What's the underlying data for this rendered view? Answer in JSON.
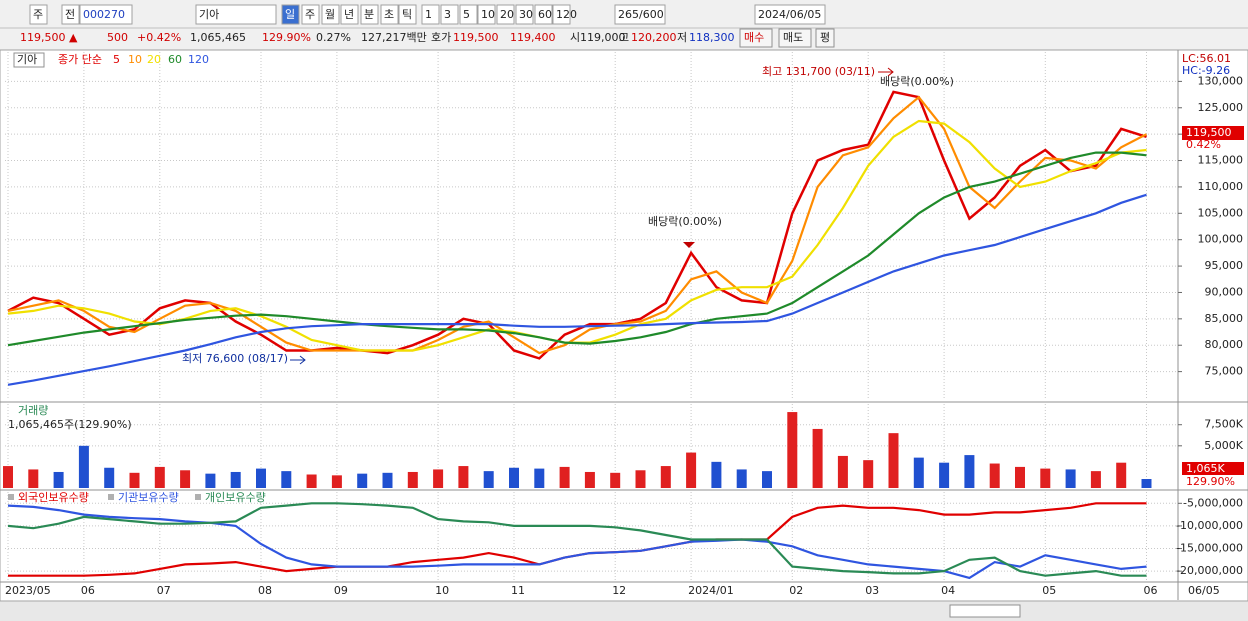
{
  "toolbar": {
    "row1": [
      "주",
      "전",
      "000270",
      "기아",
      "일",
      "주",
      "월",
      "년",
      "분",
      "초",
      "틱",
      "1",
      "3",
      "5",
      "10",
      "20",
      "30",
      "60",
      "120",
      "265/600",
      "2024/06/05"
    ],
    "row2": [
      "119,500 ▲",
      "500",
      "+0.42%",
      "1,065,465",
      "129.90%",
      "0.27%",
      "127,217백만",
      "호가",
      "119,500",
      "119,400",
      "시",
      "119,000",
      "고",
      "120,200",
      "저",
      "118,300",
      "매수",
      "매도",
      "평"
    ]
  },
  "chart_data": [
    {
      "type": "line",
      "name": "기아",
      "legend_title": "종가 단순",
      "annotations": [
        "최고 131,700 (03/11)",
        "최저 76,600 (08/17)",
        "배당락(0.00%)",
        "배당락(0.00%)"
      ],
      "lc": "LC:56.01",
      "hc": "HC:-9.26",
      "last_label": "119,500",
      "change_label": "0.42%",
      "ylim": [
        70000,
        135000
      ],
      "yticks": [
        {
          "value": 75000,
          "label": "75,000"
        },
        {
          "value": 80000,
          "label": "80,000"
        },
        {
          "value": 85000,
          "label": "85,000"
        },
        {
          "value": 90000,
          "label": "90,000"
        },
        {
          "value": 95000,
          "label": "95,000"
        },
        {
          "value": 100000,
          "label": "100,000"
        },
        {
          "value": 105000,
          "label": "105,000"
        },
        {
          "value": 110000,
          "label": "110,000"
        },
        {
          "value": 115000,
          "label": "115,000"
        },
        {
          "value": 120000,
          "label": "120,000"
        },
        {
          "value": 125000,
          "label": "125,000"
        },
        {
          "value": 130000,
          "label": "130,000"
        }
      ],
      "grid": true,
      "series": [
        {
          "name": "5",
          "color": "#e00000",
          "values": [
            86500,
            89000,
            88000,
            85000,
            82000,
            83000,
            87000,
            88500,
            88000,
            84500,
            82000,
            79000,
            79000,
            79500,
            79000,
            78500,
            80000,
            82000,
            85000,
            84000,
            79000,
            77500,
            82000,
            84000,
            84000,
            85000,
            88000,
            97500,
            91000,
            88500,
            88000,
            105000,
            115000,
            117000,
            118000,
            128000,
            127000,
            115000,
            104000,
            108000,
            114000,
            117000,
            113000,
            114000,
            121000,
            119500
          ]
        },
        {
          "name": "10",
          "color": "#ff8c00",
          "values": [
            86500,
            87500,
            88500,
            86500,
            83500,
            82500,
            85000,
            87500,
            88000,
            86500,
            83500,
            80500,
            79000,
            79000,
            79000,
            79000,
            79000,
            81000,
            83500,
            84500,
            81500,
            78500,
            80000,
            83000,
            84000,
            84500,
            86500,
            92500,
            94000,
            90000,
            88000,
            96000,
            110000,
            116000,
            117500,
            123000,
            127000,
            121000,
            110000,
            106000,
            111000,
            115500,
            115000,
            113500,
            117500,
            120000
          ]
        },
        {
          "name": "20",
          "color": "#f0e000",
          "values": [
            86000,
            86500,
            87500,
            87000,
            86000,
            84500,
            84000,
            85000,
            86500,
            87000,
            85500,
            83500,
            81000,
            80000,
            79000,
            79000,
            79000,
            80000,
            81500,
            83000,
            82500,
            81500,
            80500,
            80500,
            82000,
            84000,
            85000,
            88500,
            90500,
            91000,
            91000,
            93000,
            99000,
            106000,
            114000,
            119500,
            122500,
            122000,
            118500,
            113500,
            110000,
            111000,
            113000,
            114500,
            116500,
            117000
          ]
        },
        {
          "name": "60",
          "color": "#1f8a2a",
          "values": [
            80000,
            80800,
            81600,
            82400,
            83000,
            83600,
            84200,
            84800,
            85200,
            85600,
            85800,
            85500,
            85000,
            84500,
            84000,
            83600,
            83300,
            83000,
            83000,
            82800,
            82300,
            81500,
            80500,
            80300,
            80800,
            81500,
            82500,
            84000,
            85000,
            85500,
            86000,
            88000,
            91000,
            94000,
            97000,
            101000,
            105000,
            108000,
            110000,
            111000,
            112500,
            114000,
            115500,
            116500,
            116500,
            116000
          ]
        },
        {
          "name": "120",
          "color": "#2f55e0",
          "values": [
            72500,
            73300,
            74200,
            75100,
            76000,
            77000,
            78000,
            79000,
            80200,
            81500,
            82500,
            83200,
            83600,
            83800,
            84000,
            84000,
            84000,
            84000,
            84000,
            84000,
            83700,
            83500,
            83500,
            83600,
            83700,
            83800,
            84000,
            84200,
            84300,
            84400,
            84600,
            86000,
            88000,
            90000,
            92000,
            94000,
            95500,
            97000,
            98000,
            99000,
            100500,
            102000,
            103500,
            105000,
            107000,
            108500
          ]
        }
      ]
    },
    {
      "type": "bar",
      "title": "거래량",
      "subtitle": "1,065,465주(129.90%)",
      "last_label": "1,065K",
      "ratio_label": "129.90%",
      "up_color": "#e02020",
      "down_color": "#2050d0",
      "ylim": [
        0,
        9600000
      ],
      "yticks": [
        {
          "value": 5000000,
          "label": "5,000K"
        },
        {
          "value": 7500000,
          "label": "7,500K"
        }
      ],
      "values": [
        2600000,
        2200000,
        1900000,
        5000000,
        2400000,
        1800000,
        2500000,
        2100000,
        1700000,
        1900000,
        2300000,
        2000000,
        1600000,
        1500000,
        1700000,
        1800000,
        1900000,
        2200000,
        2600000,
        2000000,
        2400000,
        2300000,
        2500000,
        1900000,
        1800000,
        2100000,
        2600000,
        4200000,
        3100000,
        2200000,
        2000000,
        9000000,
        7000000,
        3800000,
        3300000,
        6500000,
        3600000,
        3000000,
        3900000,
        2900000,
        2500000,
        2300000,
        2200000,
        2000000,
        3000000,
        1065465
      ]
    },
    {
      "type": "line",
      "date_label": "06/05",
      "categories": [
        "2023/05",
        null,
        null,
        "06",
        null,
        null,
        "07",
        null,
        null,
        null,
        "08",
        null,
        null,
        "09",
        null,
        null,
        null,
        "10",
        null,
        null,
        "11",
        null,
        null,
        null,
        "12",
        null,
        null,
        "2024/01",
        null,
        null,
        null,
        "02",
        null,
        null,
        "03",
        null,
        null,
        "04",
        null,
        null,
        null,
        "05",
        null,
        null,
        null,
        "06"
      ],
      "ylim": [
        -22400000,
        -2500000
      ],
      "yticks": [
        {
          "value": -5000000,
          "label": "-5,000,000"
        },
        {
          "value": -10000000,
          "label": "-10,000,000"
        },
        {
          "value": -15000000,
          "label": "-15,000,000"
        },
        {
          "value": -20000000,
          "label": "-20,000,000"
        }
      ],
      "series": [
        {
          "name": "외국인보유수량",
          "color": "#e00000",
          "values": [
            -21000000,
            -21000000,
            -21000000,
            -21000000,
            -20800000,
            -20500000,
            -19500000,
            -18500000,
            -18300000,
            -18000000,
            -19000000,
            -20000000,
            -19500000,
            -19000000,
            -19000000,
            -19000000,
            -18000000,
            -17500000,
            -17000000,
            -16000000,
            -17000000,
            -18500000,
            -17000000,
            -16000000,
            -15800000,
            -15500000,
            -14500000,
            -13500000,
            -13000000,
            -13000000,
            -13000000,
            -8000000,
            -6000000,
            -5500000,
            -6000000,
            -6000000,
            -6500000,
            -7500000,
            -7500000,
            -7000000,
            -7000000,
            -6500000,
            -6000000,
            -5000000,
            -5000000,
            -5000000
          ]
        },
        {
          "name": "기관보유수량",
          "color": "#2f55e0",
          "values": [
            -5500000,
            -5800000,
            -6500000,
            -7500000,
            -8000000,
            -8300000,
            -8500000,
            -9000000,
            -9300000,
            -10000000,
            -14000000,
            -17000000,
            -18500000,
            -19000000,
            -19000000,
            -19000000,
            -19000000,
            -18800000,
            -18500000,
            -18500000,
            -18500000,
            -18500000,
            -17000000,
            -16000000,
            -15800000,
            -15500000,
            -14500000,
            -13500000,
            -13300000,
            -13000000,
            -13500000,
            -14500000,
            -16500000,
            -17500000,
            -18500000,
            -19000000,
            -19500000,
            -20000000,
            -21500000,
            -18000000,
            -19000000,
            -16500000,
            -17500000,
            -18500000,
            -19500000,
            -19000000
          ]
        },
        {
          "name": "개인보유수량",
          "color": "#2a8a55",
          "values": [
            -10000000,
            -10500000,
            -9500000,
            -8000000,
            -8500000,
            -9000000,
            -9500000,
            -9500000,
            -9300000,
            -9000000,
            -6000000,
            -5500000,
            -5000000,
            -5000000,
            -5200000,
            -5500000,
            -6000000,
            -8500000,
            -9000000,
            -9200000,
            -10000000,
            -10000000,
            -10000000,
            -10000000,
            -10300000,
            -11000000,
            -12000000,
            -13000000,
            -13000000,
            -13000000,
            -13000000,
            -19000000,
            -19500000,
            -20000000,
            -20200000,
            -20500000,
            -20500000,
            -20000000,
            -17500000,
            -17000000,
            -20000000,
            -21000000,
            -20500000,
            -20000000,
            -21000000,
            -21000000
          ]
        }
      ]
    }
  ]
}
